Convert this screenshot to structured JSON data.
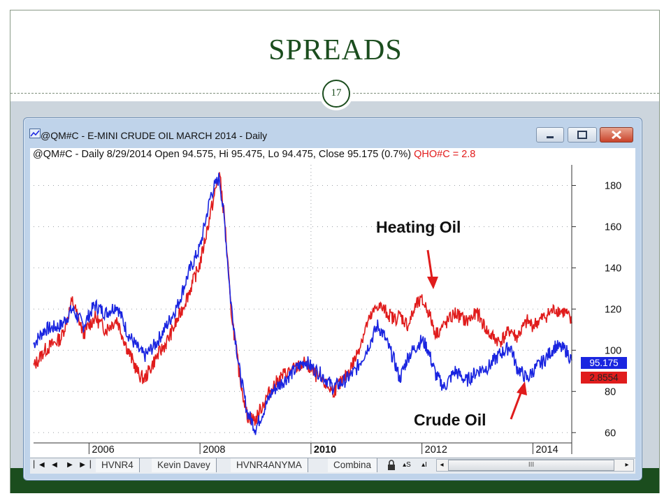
{
  "slide": {
    "title": "SPREADS",
    "page_number": "17",
    "colors": {
      "title": "#1b4d1e",
      "band": "#1b4d1e",
      "background": "#ccd5dd"
    }
  },
  "window": {
    "title": "@QM#C - E-MINI CRUDE OIL MARCH 2014 - Daily",
    "icon": "chart-window-icon",
    "buttons": [
      "minimize-icon",
      "maximize-icon",
      "close-icon"
    ]
  },
  "info": {
    "text": "@QM#C - Daily 8/29/2014 Open 94.575, Hi 95.475, Lo 94.475, Close 95.175 (0.7%)",
    "secondary": "QHO#C = 2.8"
  },
  "price_tags": {
    "crude": "95.175",
    "heating": "2.8554"
  },
  "annotations": {
    "heating_oil": "Heating Oil",
    "crude_oil": "Crude Oil"
  },
  "tabs": [
    "HVNR4",
    "Kevin Davey",
    "HVNR4ANYMA",
    "Combina"
  ],
  "tab_controls": [
    "lock-icon",
    "▴S",
    "▴I"
  ],
  "scroll_label": "III",
  "chart_data": {
    "type": "line",
    "ylim": [
      55,
      190
    ],
    "yticks": [
      "180",
      "160",
      "140",
      "120",
      "100",
      "80",
      "60"
    ],
    "ytick_values": [
      180,
      160,
      140,
      120,
      100,
      80,
      60
    ],
    "xlim": [
      2005.0,
      2014.7
    ],
    "xticks": [
      "2006",
      "2008",
      "2010",
      "2012",
      "2014"
    ],
    "xtick_values": [
      2006,
      2008,
      2010,
      2012,
      2014
    ],
    "colors": {
      "crude": "#1a25e0",
      "heating": "#e01c1c"
    },
    "series": [
      {
        "key": "crude",
        "x": [
          2005.0,
          2005.2,
          2005.5,
          2005.7,
          2005.9,
          2006.1,
          2006.3,
          2006.5,
          2006.7,
          2006.9,
          2007.0,
          2007.2,
          2007.4,
          2007.6,
          2007.8,
          2008.0,
          2008.2,
          2008.35,
          2008.45,
          2008.55,
          2008.7,
          2008.85,
          2009.0,
          2009.1,
          2009.3,
          2009.5,
          2009.7,
          2009.9,
          2010.0,
          2010.2,
          2010.4,
          2010.6,
          2010.8,
          2011.0,
          2011.2,
          2011.3,
          2011.5,
          2011.6,
          2011.75,
          2011.9,
          2012.0,
          2012.1,
          2012.25,
          2012.4,
          2012.6,
          2012.8,
          2013.0,
          2013.2,
          2013.4,
          2013.6,
          2013.7,
          2013.9,
          2014.0,
          2014.2,
          2014.4,
          2014.6,
          2014.7
        ],
        "values": [
          103,
          110,
          112,
          120,
          112,
          122,
          118,
          122,
          108,
          100,
          97,
          103,
          112,
          122,
          138,
          150,
          176,
          184,
          160,
          125,
          92,
          70,
          62,
          68,
          80,
          85,
          90,
          95,
          92,
          88,
          82,
          85,
          90,
          100,
          112,
          108,
          95,
          86,
          97,
          102,
          105,
          101,
          88,
          82,
          90,
          85,
          90,
          92,
          98,
          102,
          92,
          86,
          90,
          95,
          102,
          100,
          95
        ]
      },
      {
        "key": "heating",
        "x": [
          2005.0,
          2005.2,
          2005.5,
          2005.7,
          2005.9,
          2006.1,
          2006.3,
          2006.5,
          2006.7,
          2006.9,
          2007.0,
          2007.2,
          2007.4,
          2007.6,
          2007.8,
          2008.0,
          2008.2,
          2008.35,
          2008.45,
          2008.55,
          2008.7,
          2008.85,
          2009.0,
          2009.1,
          2009.3,
          2009.5,
          2009.7,
          2009.9,
          2010.0,
          2010.2,
          2010.4,
          2010.6,
          2010.8,
          2011.0,
          2011.2,
          2011.3,
          2011.5,
          2011.6,
          2011.75,
          2011.9,
          2012.0,
          2012.1,
          2012.25,
          2012.4,
          2012.6,
          2012.8,
          2013.0,
          2013.2,
          2013.4,
          2013.6,
          2013.7,
          2013.9,
          2014.0,
          2014.2,
          2014.4,
          2014.6,
          2014.7
        ],
        "values": [
          92,
          100,
          106,
          124,
          108,
          116,
          110,
          115,
          100,
          88,
          86,
          96,
          104,
          115,
          128,
          142,
          168,
          186,
          162,
          122,
          90,
          68,
          66,
          72,
          82,
          88,
          91,
          94,
          90,
          85,
          80,
          86,
          96,
          112,
          122,
          120,
          115,
          117,
          112,
          122,
          124,
          120,
          108,
          112,
          118,
          114,
          118,
          108,
          104,
          110,
          106,
          114,
          112,
          116,
          120,
          118,
          113
        ]
      }
    ]
  }
}
